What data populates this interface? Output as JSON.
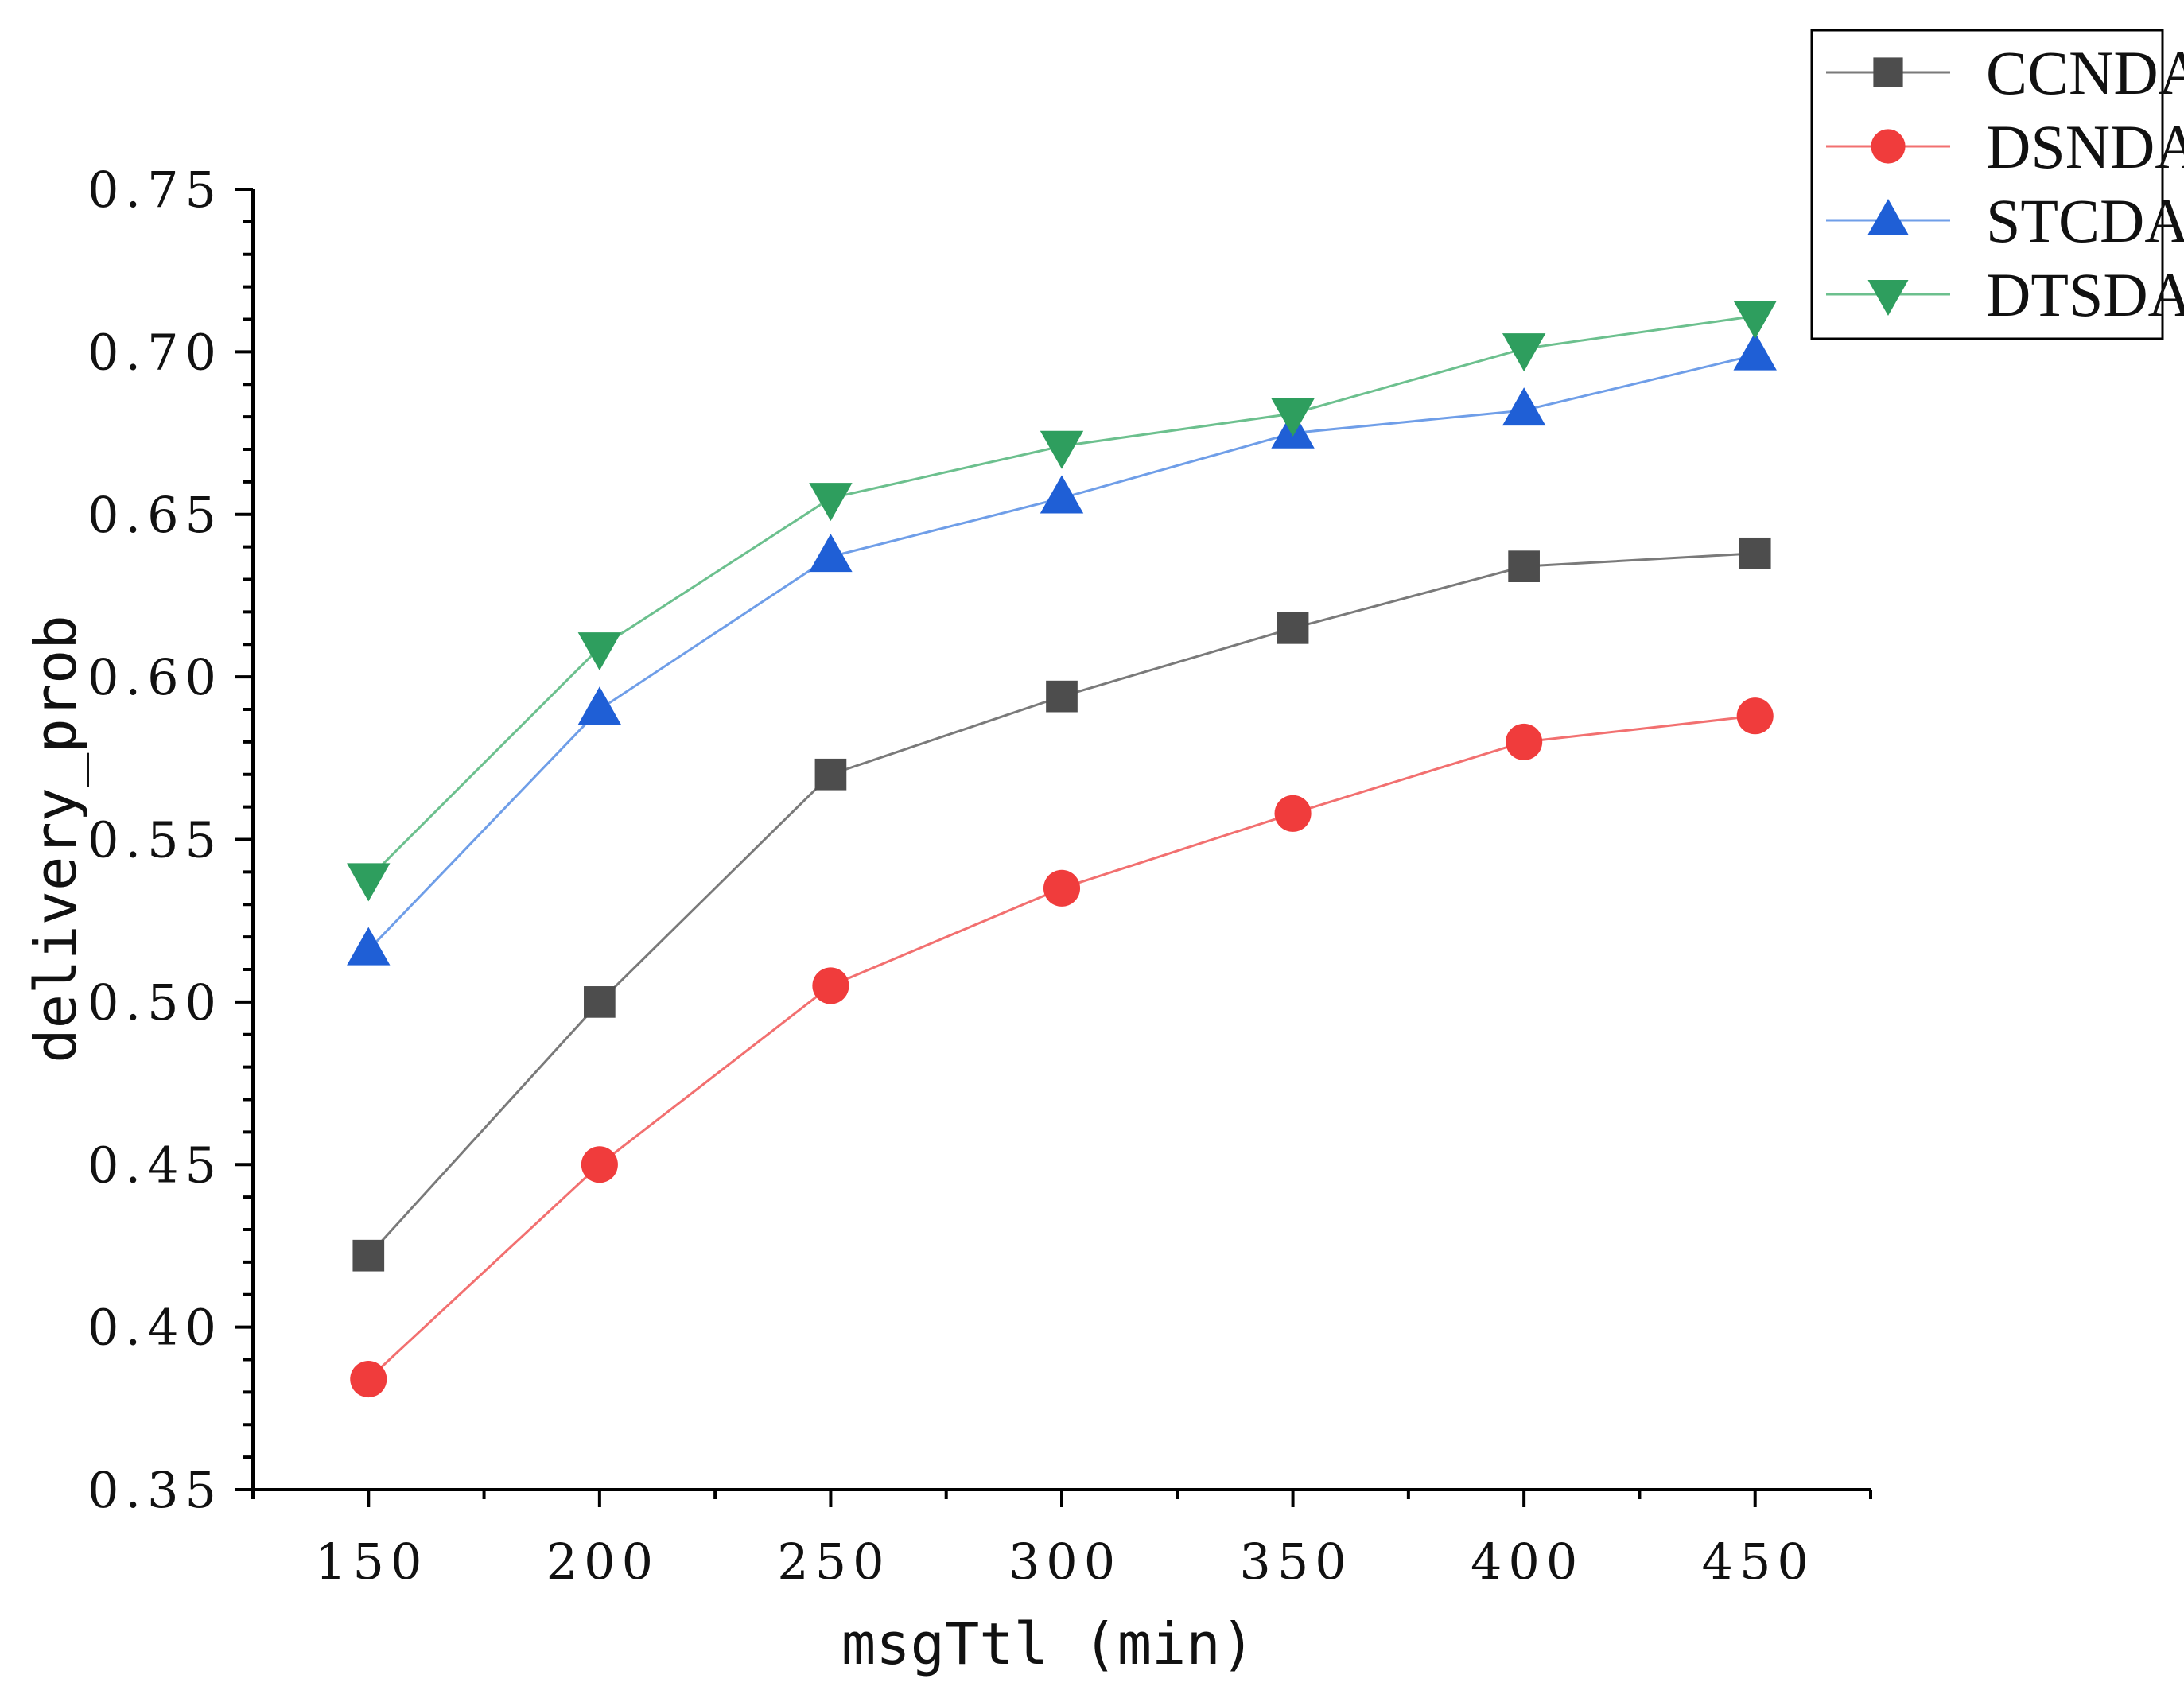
{
  "chart_data": {
    "type": "line",
    "xlabel": "msgTtl (min)",
    "ylabel": "delivery_prob",
    "x": [
      150,
      200,
      250,
      300,
      350,
      400,
      450
    ],
    "xlim": [
      125,
      475
    ],
    "ylim": [
      0.35,
      0.75
    ],
    "x_ticks": [
      "150",
      "200",
      "250",
      "300",
      "350",
      "400",
      "450"
    ],
    "y_ticks": [
      "0.35",
      "0.40",
      "0.45",
      "0.50",
      "0.55",
      "0.60",
      "0.65",
      "0.70",
      "0.75"
    ],
    "legend_position": "top-right",
    "grid": false,
    "series": [
      {
        "name": "CCNDA",
        "marker": "square",
        "color": "#4d4d4d",
        "line_color": "#7a7a7a",
        "values": [
          0.422,
          0.5,
          0.57,
          0.594,
          0.615,
          0.634,
          0.638
        ]
      },
      {
        "name": "DSNDA",
        "marker": "circle",
        "color": "#f03c3c",
        "line_color": "#f27070",
        "values": [
          0.384,
          0.45,
          0.505,
          0.535,
          0.558,
          0.58,
          0.588
        ]
      },
      {
        "name": "STCDA",
        "marker": "triangle-up",
        "color": "#1f5fd6",
        "line_color": "#6f9ee8",
        "values": [
          0.516,
          0.59,
          0.637,
          0.655,
          0.675,
          0.682,
          0.699
        ]
      },
      {
        "name": "DTSDA",
        "marker": "triangle-down",
        "color": "#2e9e5e",
        "line_color": "#6cc08e",
        "values": [
          0.538,
          0.609,
          0.655,
          0.671,
          0.681,
          0.701,
          0.711
        ]
      }
    ]
  }
}
